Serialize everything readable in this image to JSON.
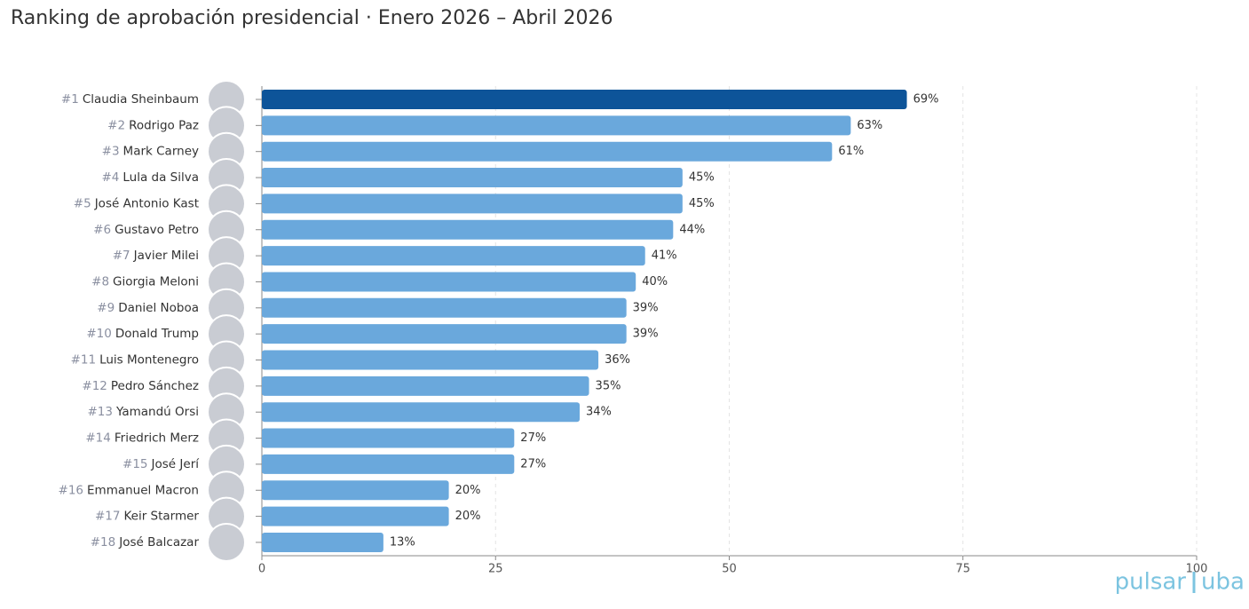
{
  "chart_data": {
    "type": "hbar",
    "title": "Ranking de aprobación presidencial · Enero 2026 – Abril 2026",
    "ranks": [
      "#1",
      "#2",
      "#3",
      "#4",
      "#5",
      "#6",
      "#7",
      "#8",
      "#9",
      "#10",
      "#11",
      "#12",
      "#13",
      "#14",
      "#15",
      "#16",
      "#17",
      "#18"
    ],
    "categories": [
      "Claudia Sheinbaum",
      "Rodrigo Paz",
      "Mark Carney",
      "Lula da Silva",
      "José Antonio Kast",
      "Gustavo Petro",
      "Javier Milei",
      "Giorgia Meloni",
      "Daniel Noboa",
      "Donald Trump",
      "Luis Montenegro",
      "Pedro Sánchez",
      "Yamandú Orsi",
      "Friedrich Merz",
      "José Jerí",
      "Emmanuel Macron",
      "Keir Starmer",
      "José Balcazar"
    ],
    "values": [
      69,
      63,
      61,
      45,
      45,
      44,
      41,
      40,
      39,
      39,
      36,
      35,
      34,
      27,
      27,
      20,
      20,
      13
    ],
    "value_labels": [
      "69%",
      "63%",
      "61%",
      "45%",
      "45%",
      "44%",
      "41%",
      "40%",
      "39%",
      "39%",
      "36%",
      "35%",
      "34%",
      "27%",
      "27%",
      "20%",
      "20%",
      "13%"
    ],
    "colors": [
      "#0d5499",
      "#6aa8dc",
      "#6aa8dc",
      "#6aa8dc",
      "#6aa8dc",
      "#6aa8dc",
      "#6aa8dc",
      "#6aa8dc",
      "#6aa8dc",
      "#6aa8dc",
      "#6aa8dc",
      "#6aa8dc",
      "#6aa8dc",
      "#6aa8dc",
      "#6aa8dc",
      "#6aa8dc",
      "#6aa8dc",
      "#6aa8dc"
    ],
    "xlim": [
      0,
      100
    ],
    "xticks": [
      0,
      25,
      50,
      75,
      100
    ],
    "grid": true,
    "logo": [
      "pulsar",
      "uba"
    ]
  }
}
